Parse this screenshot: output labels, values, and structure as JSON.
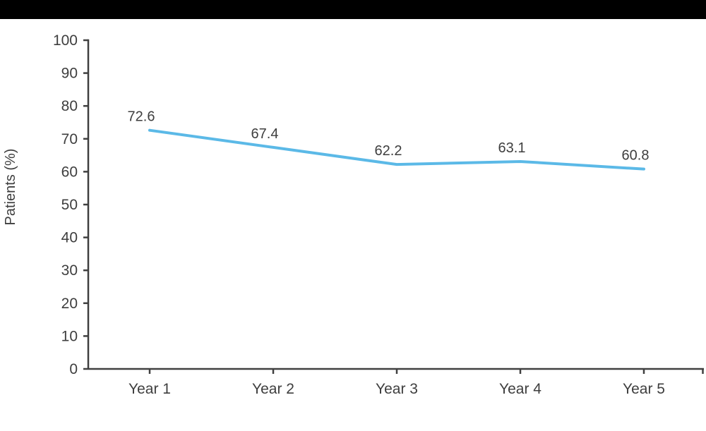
{
  "page": {
    "background_color": "#ffffff",
    "top_bar_color": "#000000"
  },
  "chart_data": {
    "type": "line",
    "title": "",
    "ylabel": "Patients (%)",
    "xlabel": "",
    "categories": [
      "Year 1",
      "Year 2",
      "Year 3",
      "Year 4",
      "Year 5"
    ],
    "series": [
      {
        "name": "Patients (%)",
        "values": [
          72.6,
          67.4,
          62.2,
          63.1,
          60.8
        ],
        "labels": [
          "72.6",
          "67.4",
          "62.2",
          "63.1",
          "60.8"
        ],
        "color": "#5BB9E7"
      }
    ],
    "ylim": [
      0,
      100
    ],
    "yticks": [
      0,
      10,
      20,
      30,
      40,
      50,
      60,
      70,
      80,
      90,
      100
    ],
    "grid": false,
    "legend": "none",
    "markers": "none",
    "data_labels_visible": true,
    "axis_color": "#404040",
    "text_color": "#3E3E3E"
  }
}
